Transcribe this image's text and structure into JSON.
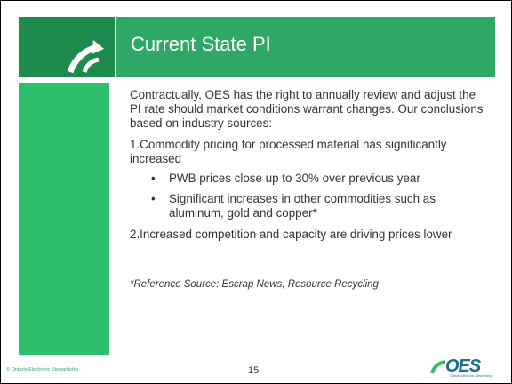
{
  "header": {
    "title": "Current State PI"
  },
  "body": {
    "intro": "Contractually, OES has the right to annually review and adjust the PI rate should market conditions warrant changes. Our conclusions based on industry sources:",
    "points": [
      {
        "text": "1.Commodity pricing for processed material has significantly increased",
        "bullets": [
          "PWB prices close up to 30% over previous year",
          "Significant increases in other commodities such as aluminum, gold and copper*"
        ]
      },
      {
        "text": "2.Increased competition and capacity are driving prices lower",
        "bullets": []
      }
    ],
    "reference": "*Reference Source: Escrap News, Resource Recycling"
  },
  "footer": {
    "copyright": "© Ontario Electronic Stewardship",
    "page_number": "15",
    "logo": {
      "name": "OES",
      "tagline": "Ontario Electronic Stewardship"
    }
  }
}
